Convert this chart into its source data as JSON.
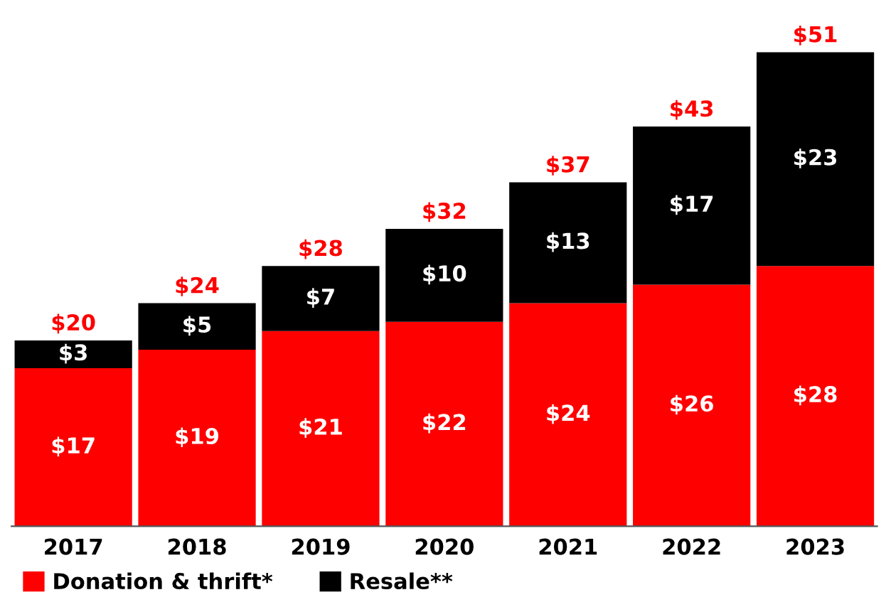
{
  "chart_data": {
    "type": "bar",
    "stacked": true,
    "legend": "bottom left",
    "grid": false,
    "categories": [
      "2017",
      "2018",
      "2019",
      "2020",
      "2021",
      "2022",
      "2023"
    ],
    "series": [
      {
        "name": "Donation & thrift*",
        "color": "#ff0000",
        "values": [
          17,
          19,
          21,
          22,
          24,
          26,
          28
        ],
        "value_labels": [
          "$17",
          "$19",
          "$21",
          "$22",
          "$24",
          "$26",
          "$28"
        ]
      },
      {
        "name": "Resale**",
        "color": "#000000",
        "values": [
          3,
          5,
          7,
          10,
          13,
          17,
          23
        ],
        "value_labels": [
          "$3",
          "$5",
          "$7",
          "$10",
          "$13",
          "$17",
          "$23"
        ]
      }
    ],
    "totals": [
      "$20",
      "$24",
      "$28",
      "$32",
      "$37",
      "$43",
      "$51"
    ]
  }
}
